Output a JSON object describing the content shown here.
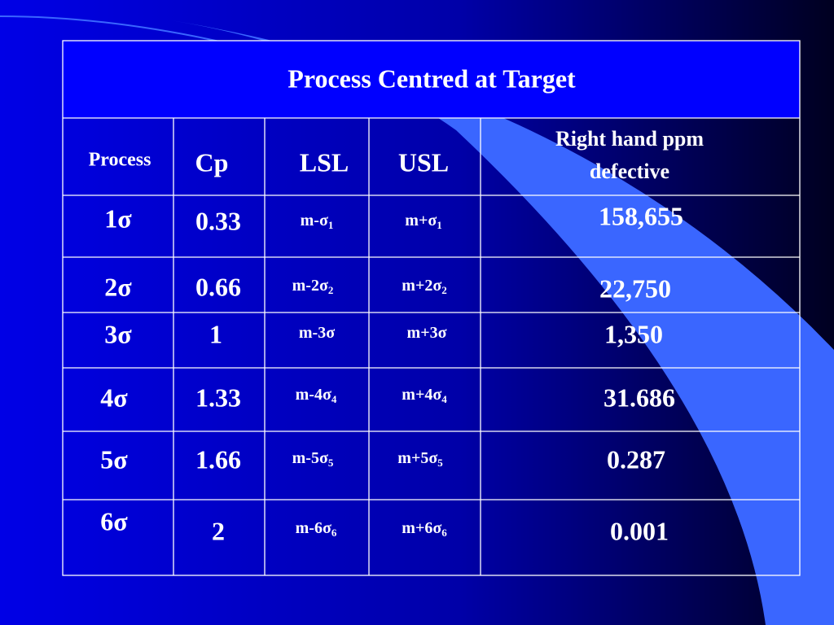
{
  "table": {
    "title": "Process Centred at Target",
    "header": [
      "Process",
      "Cp",
      "LSL",
      "USL",
      [
        "Right hand ppm",
        "defective"
      ]
    ],
    "rows": [
      [
        "1σ",
        "0.33",
        {
          "text": "m-σ",
          "sub": "1"
        },
        {
          "text": "m+σ",
          "sub": "1"
        },
        "158,655"
      ],
      [
        "2σ",
        "0.66",
        {
          "text": "m-2σ",
          "sub": "2"
        },
        {
          "text": "m+2σ",
          "sub": "2"
        },
        "22,750"
      ],
      [
        "3σ",
        "1",
        {
          "text": "m-3σ"
        },
        {
          "text": "m+3σ"
        },
        "1,350"
      ],
      [
        "4σ",
        "1.33",
        {
          "text": "m-4σ",
          "sub": "4"
        },
        {
          "text": "m+4σ",
          "sub": "4"
        },
        "31.686"
      ],
      [
        "5σ",
        "1.66",
        {
          "text": "m-5σ",
          "sub": "5"
        },
        {
          "text": "m+5σ",
          "sub": "5"
        },
        "0.287"
      ],
      [
        "6σ",
        "2",
        {
          "text": "m-6σ",
          "sub": "6"
        },
        {
          "text": "m+6σ",
          "sub": "6"
        },
        "0.001"
      ]
    ]
  }
}
